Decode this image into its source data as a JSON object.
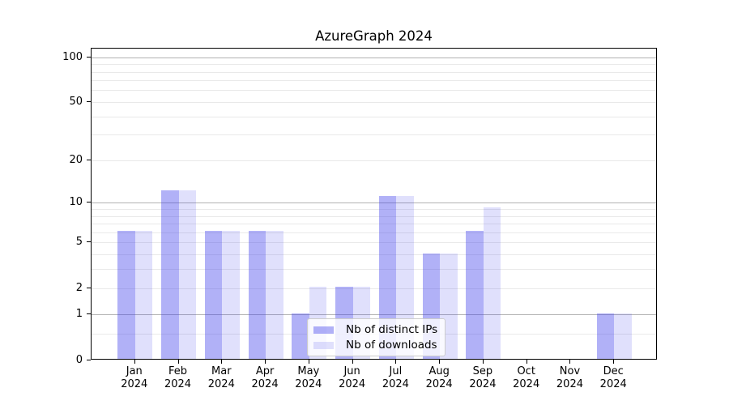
{
  "chart_data": {
    "type": "bar",
    "title": "AzureGraph 2024",
    "categories": [
      "Jan 2024",
      "Feb 2024",
      "Mar 2024",
      "Apr 2024",
      "May 2024",
      "Jun 2024",
      "Jul 2024",
      "Aug 2024",
      "Sep 2024",
      "Oct 2024",
      "Nov 2024",
      "Dec 2024"
    ],
    "series": [
      {
        "name": "Nb of distinct IPs",
        "color": "rgba(61,61,235,0.40)",
        "values": [
          6,
          12,
          6,
          6,
          1,
          2,
          11,
          4,
          6,
          0,
          0,
          1
        ]
      },
      {
        "name": "Nb of downloads",
        "color": "rgba(61,61,235,0.16)",
        "values": [
          6,
          12,
          6,
          6,
          2,
          2,
          11,
          4,
          9,
          0,
          0,
          1
        ]
      }
    ],
    "xlabel": "",
    "ylabel": "",
    "yscale": "symlog(log10(1+v))",
    "ylim": [
      0,
      114.9
    ],
    "yticks": [
      0,
      1,
      2,
      5,
      10,
      20,
      50,
      100
    ],
    "grid_major": [
      1,
      10,
      100
    ],
    "grid_minor": [
      0.5,
      2,
      3,
      4,
      5,
      6,
      7,
      8,
      9,
      20,
      30,
      40,
      50,
      60,
      70,
      80,
      90
    ],
    "grid": "on",
    "legend_position": "lower-center-inside",
    "colors": {
      "grid_major": "#b2b2b2",
      "grid_minor": "#e9e9e9",
      "spine": "#000000",
      "text": "#000000",
      "background": "#ffffff"
    }
  }
}
